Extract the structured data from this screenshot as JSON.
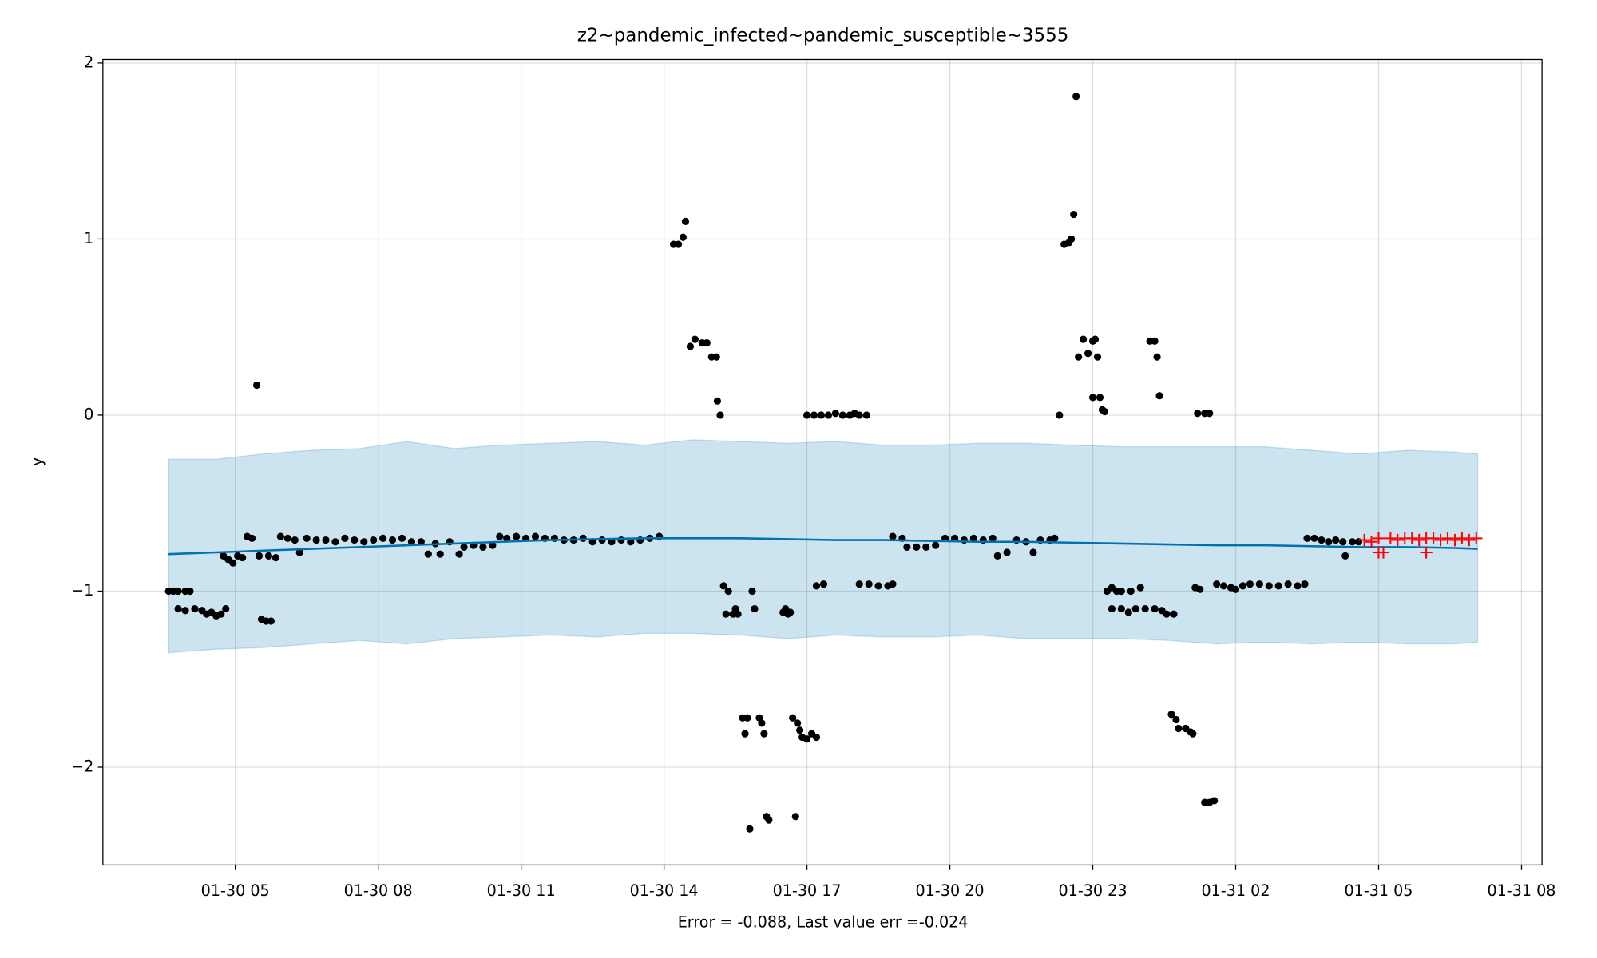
{
  "chart_data": {
    "type": "forecast",
    "title": "z2~pandemic_infected~pandemic_susceptible~3555",
    "x_label": "Error = -0.088, Last value err =-0.024",
    "y_label": "y",
    "xlim": [
      2.22,
      32.43
    ],
    "ylim": [
      -2.555,
      2.02
    ],
    "xticks": [
      {
        "value": 5,
        "label": "01-30 05"
      },
      {
        "value": 8,
        "label": "01-30 08"
      },
      {
        "value": 11,
        "label": "01-30 11"
      },
      {
        "value": 14,
        "label": "01-30 14"
      },
      {
        "value": 17,
        "label": "01-30 17"
      },
      {
        "value": 20,
        "label": "01-30 20"
      },
      {
        "value": 23,
        "label": "01-30 23"
      },
      {
        "value": 26,
        "label": "01-31 02"
      },
      {
        "value": 29,
        "label": "01-31 05"
      },
      {
        "value": 32,
        "label": "01-31 08"
      }
    ],
    "yticks": [
      {
        "value": -2,
        "label": "−2"
      },
      {
        "value": -1,
        "label": "−1"
      },
      0,
      1,
      2
    ],
    "grid": true,
    "observed": {
      "color": "#000000",
      "x": [
        3.6,
        3.7,
        3.8,
        3.95,
        4.05,
        3.8,
        3.95,
        4.15,
        4.3,
        4.4,
        4.5,
        4.6,
        4.7,
        4.8,
        4.75,
        4.85,
        4.95,
        5.05,
        5.15,
        5.25,
        5.35,
        5.45,
        5.5,
        5.55,
        5.65,
        5.75,
        5.7,
        5.85,
        5.95,
        6.1,
        6.25,
        6.35,
        6.5,
        6.7,
        6.9,
        7.1,
        7.3,
        7.5,
        7.7,
        7.9,
        8.1,
        8.3,
        8.5,
        8.7,
        8.9,
        9.05,
        9.2,
        9.3,
        9.5,
        9.7,
        9.8,
        10.0,
        10.2,
        10.4,
        10.55,
        10.7,
        10.9,
        11.1,
        11.3,
        11.5,
        11.7,
        11.9,
        12.1,
        12.3,
        12.5,
        12.7,
        12.9,
        13.1,
        13.3,
        13.5,
        13.7,
        13.9,
        14.2,
        14.3,
        14.4,
        14.45,
        14.55,
        14.65,
        14.8,
        14.9,
        15.0,
        15.1,
        15.12,
        15.18,
        15.25,
        15.35,
        15.3,
        15.45,
        15.55,
        15.5,
        15.65,
        15.75,
        15.7,
        15.8,
        15.85,
        15.9,
        16.0,
        16.05,
        16.1,
        16.15,
        16.2,
        16.5,
        16.55,
        16.6,
        16.65,
        16.7,
        16.8,
        16.85,
        16.9,
        17.0,
        16.76,
        17.1,
        17.2,
        17.0,
        17.15,
        17.3,
        17.45,
        17.6,
        17.75,
        17.9,
        18.0,
        18.1,
        18.25,
        17.2,
        17.35,
        18.1,
        18.3,
        18.5,
        18.7,
        18.8,
        18.8,
        19.0,
        19.1,
        19.3,
        19.5,
        19.7,
        19.9,
        20.1,
        20.3,
        20.5,
        20.7,
        20.9,
        21.0,
        21.2,
        21.4,
        21.6,
        21.75,
        21.9,
        22.1,
        22.2,
        22.3,
        22.4,
        22.5,
        22.55,
        22.6,
        22.65,
        22.7,
        22.8,
        22.9,
        23.0,
        23.05,
        23.1,
        23.0,
        23.15,
        23.2,
        23.25,
        23.3,
        23.4,
        23.5,
        23.6,
        23.8,
        24.0,
        23.4,
        23.6,
        23.75,
        23.9,
        24.1,
        24.3,
        24.45,
        24.55,
        24.7,
        24.2,
        24.3,
        24.35,
        24.4,
        24.65,
        24.75,
        24.8,
        24.95,
        25.05,
        25.1,
        25.15,
        25.25,
        25.2,
        25.35,
        25.45,
        25.35,
        25.45,
        25.55,
        25.6,
        25.75,
        25.9,
        26.0,
        26.15,
        26.3,
        26.5,
        26.7,
        26.9,
        27.1,
        27.3,
        27.45,
        27.5,
        27.65,
        27.8,
        27.95,
        28.1,
        28.25,
        28.3,
        28.45,
        28.58
      ],
      "values": [
        -1.0,
        -1.0,
        -1.0,
        -1.0,
        -1.0,
        -1.1,
        -1.11,
        -1.1,
        -1.11,
        -1.13,
        -1.12,
        -1.14,
        -1.13,
        -1.1,
        -0.8,
        -0.82,
        -0.84,
        -0.8,
        -0.81,
        -0.69,
        -0.7,
        0.17,
        -0.8,
        -1.16,
        -1.17,
        -1.17,
        -0.8,
        -0.81,
        -0.69,
        -0.7,
        -0.71,
        -0.78,
        -0.7,
        -0.71,
        -0.71,
        -0.72,
        -0.7,
        -0.71,
        -0.72,
        -0.71,
        -0.7,
        -0.71,
        -0.7,
        -0.72,
        -0.72,
        -0.79,
        -0.73,
        -0.79,
        -0.72,
        -0.79,
        -0.75,
        -0.74,
        -0.75,
        -0.74,
        -0.69,
        -0.7,
        -0.69,
        -0.7,
        -0.69,
        -0.7,
        -0.7,
        -0.71,
        -0.71,
        -0.7,
        -0.72,
        -0.71,
        -0.72,
        -0.71,
        -0.72,
        -0.71,
        -0.7,
        -0.69,
        0.97,
        0.97,
        1.01,
        1.1,
        0.39,
        0.43,
        0.41,
        0.41,
        0.33,
        0.33,
        0.08,
        0.0,
        -0.97,
        -1.0,
        -1.13,
        -1.13,
        -1.13,
        -1.1,
        -1.72,
        -1.72,
        -1.81,
        -2.35,
        -1.0,
        -1.1,
        -1.72,
        -1.75,
        -1.81,
        -2.28,
        -2.3,
        -1.12,
        -1.1,
        -1.13,
        -1.12,
        -1.72,
        -1.75,
        -1.79,
        -1.83,
        -1.84,
        -2.28,
        -1.81,
        -1.83,
        0.0,
        0.0,
        0.0,
        0.0,
        0.01,
        0.0,
        0.0,
        0.01,
        0.0,
        0.0,
        -0.97,
        -0.96,
        -0.96,
        -0.96,
        -0.97,
        -0.97,
        -0.96,
        -0.69,
        -0.7,
        -0.75,
        -0.75,
        -0.75,
        -0.74,
        -0.7,
        -0.7,
        -0.71,
        -0.7,
        -0.71,
        -0.7,
        -0.8,
        -0.78,
        -0.71,
        -0.72,
        -0.78,
        -0.71,
        -0.71,
        -0.7,
        0.0,
        0.97,
        0.98,
        1.0,
        1.14,
        1.81,
        0.33,
        0.43,
        0.35,
        0.42,
        0.43,
        0.33,
        0.1,
        0.1,
        0.03,
        0.02,
        -1.0,
        -0.98,
        -1.0,
        -1.0,
        -1.0,
        -0.98,
        -1.1,
        -1.1,
        -1.12,
        -1.1,
        -1.1,
        -1.1,
        -1.11,
        -1.13,
        -1.13,
        0.42,
        0.42,
        0.33,
        0.11,
        -1.7,
        -1.73,
        -1.78,
        -1.78,
        -1.8,
        -1.81,
        -0.98,
        -0.99,
        0.01,
        0.01,
        0.01,
        -2.2,
        -2.2,
        -2.19,
        -0.96,
        -0.97,
        -0.98,
        -0.99,
        -0.97,
        -0.96,
        -0.96,
        -0.97,
        -0.97,
        -0.96,
        -0.97,
        -0.96,
        -0.7,
        -0.7,
        -0.71,
        -0.72,
        -0.71,
        -0.72,
        -0.8,
        -0.72,
        -0.72
      ]
    },
    "test": {
      "color": "#ff0000",
      "x": [
        28.7,
        28.85,
        29.0,
        29.0,
        29.1,
        29.25,
        29.4,
        29.55,
        29.7,
        29.85,
        30.0,
        30.0,
        30.15,
        30.3,
        30.45,
        30.6,
        30.75,
        30.9,
        31.05
      ],
      "values": [
        -0.71,
        -0.72,
        -0.7,
        -0.78,
        -0.78,
        -0.7,
        -0.71,
        -0.7,
        -0.7,
        -0.71,
        -0.7,
        -0.78,
        -0.7,
        -0.71,
        -0.7,
        -0.71,
        -0.7,
        -0.71,
        -0.7
      ]
    },
    "forecast": {
      "color": "#0072b2",
      "x": [
        3.6,
        4.6,
        5.6,
        6.6,
        7.6,
        8.6,
        9.6,
        10.6,
        11.6,
        12.6,
        13.6,
        14.6,
        15.6,
        16.6,
        17.6,
        18.6,
        19.6,
        20.6,
        21.6,
        22.6,
        23.6,
        24.6,
        25.6,
        26.6,
        27.6,
        28.6,
        29.6,
        30.6,
        31.08
      ],
      "values": [
        -0.79,
        -0.78,
        -0.77,
        -0.76,
        -0.75,
        -0.74,
        -0.73,
        -0.72,
        -0.71,
        -0.705,
        -0.7,
        -0.7,
        -0.7,
        -0.705,
        -0.71,
        -0.71,
        -0.715,
        -0.72,
        -0.72,
        -0.725,
        -0.73,
        -0.735,
        -0.74,
        -0.74,
        -0.745,
        -0.75,
        -0.75,
        -0.755,
        -0.76
      ],
      "upper": [
        -0.25,
        -0.25,
        -0.22,
        -0.2,
        -0.19,
        -0.15,
        -0.19,
        -0.17,
        -0.16,
        -0.15,
        -0.17,
        -0.14,
        -0.15,
        -0.16,
        -0.15,
        -0.17,
        -0.17,
        -0.16,
        -0.16,
        -0.17,
        -0.18,
        -0.18,
        -0.18,
        -0.18,
        -0.2,
        -0.22,
        -0.2,
        -0.21,
        -0.22
      ],
      "lower": [
        -1.35,
        -1.33,
        -1.32,
        -1.3,
        -1.28,
        -1.3,
        -1.27,
        -1.26,
        -1.25,
        -1.26,
        -1.24,
        -1.24,
        -1.25,
        -1.27,
        -1.25,
        -1.26,
        -1.26,
        -1.25,
        -1.27,
        -1.27,
        -1.27,
        -1.28,
        -1.3,
        -1.29,
        -1.3,
        -1.29,
        -1.3,
        -1.3,
        -1.29
      ]
    }
  }
}
